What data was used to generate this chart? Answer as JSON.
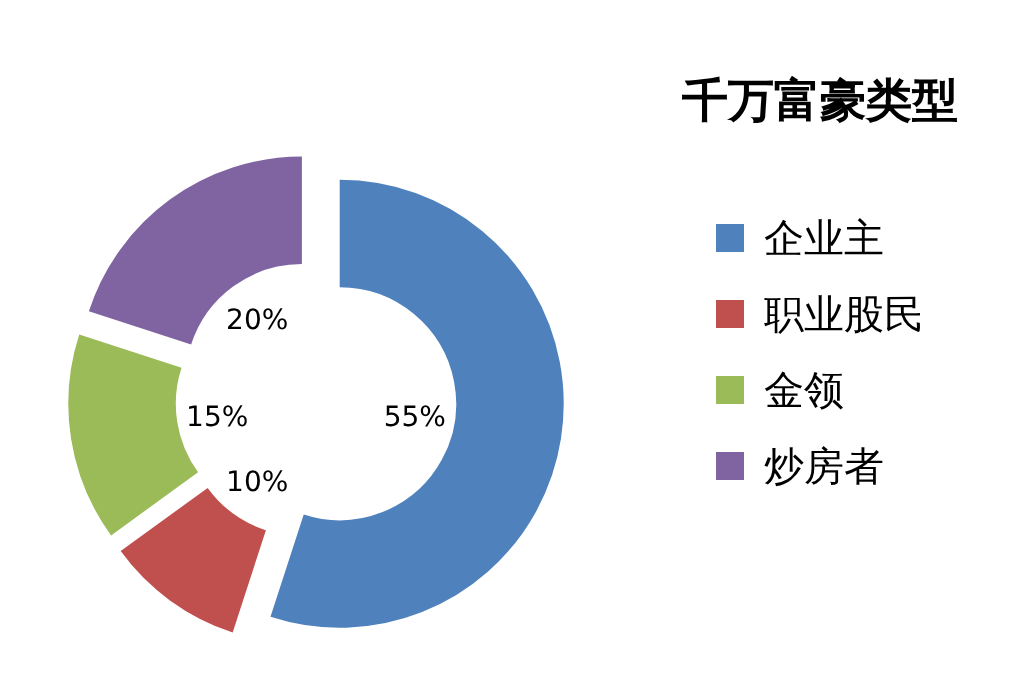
{
  "chart_data": {
    "type": "donut",
    "title": "千万富豪类型",
    "categories": [
      "企业主",
      "职业股民",
      "金领",
      "炒房者"
    ],
    "values": [
      55,
      10,
      15,
      20
    ],
    "value_labels": [
      "55%",
      "10%",
      "15%",
      "20%"
    ],
    "colors": [
      "#4f81bd",
      "#c0504d",
      "#9bbb59",
      "#8064a2"
    ],
    "legend": "right"
  }
}
